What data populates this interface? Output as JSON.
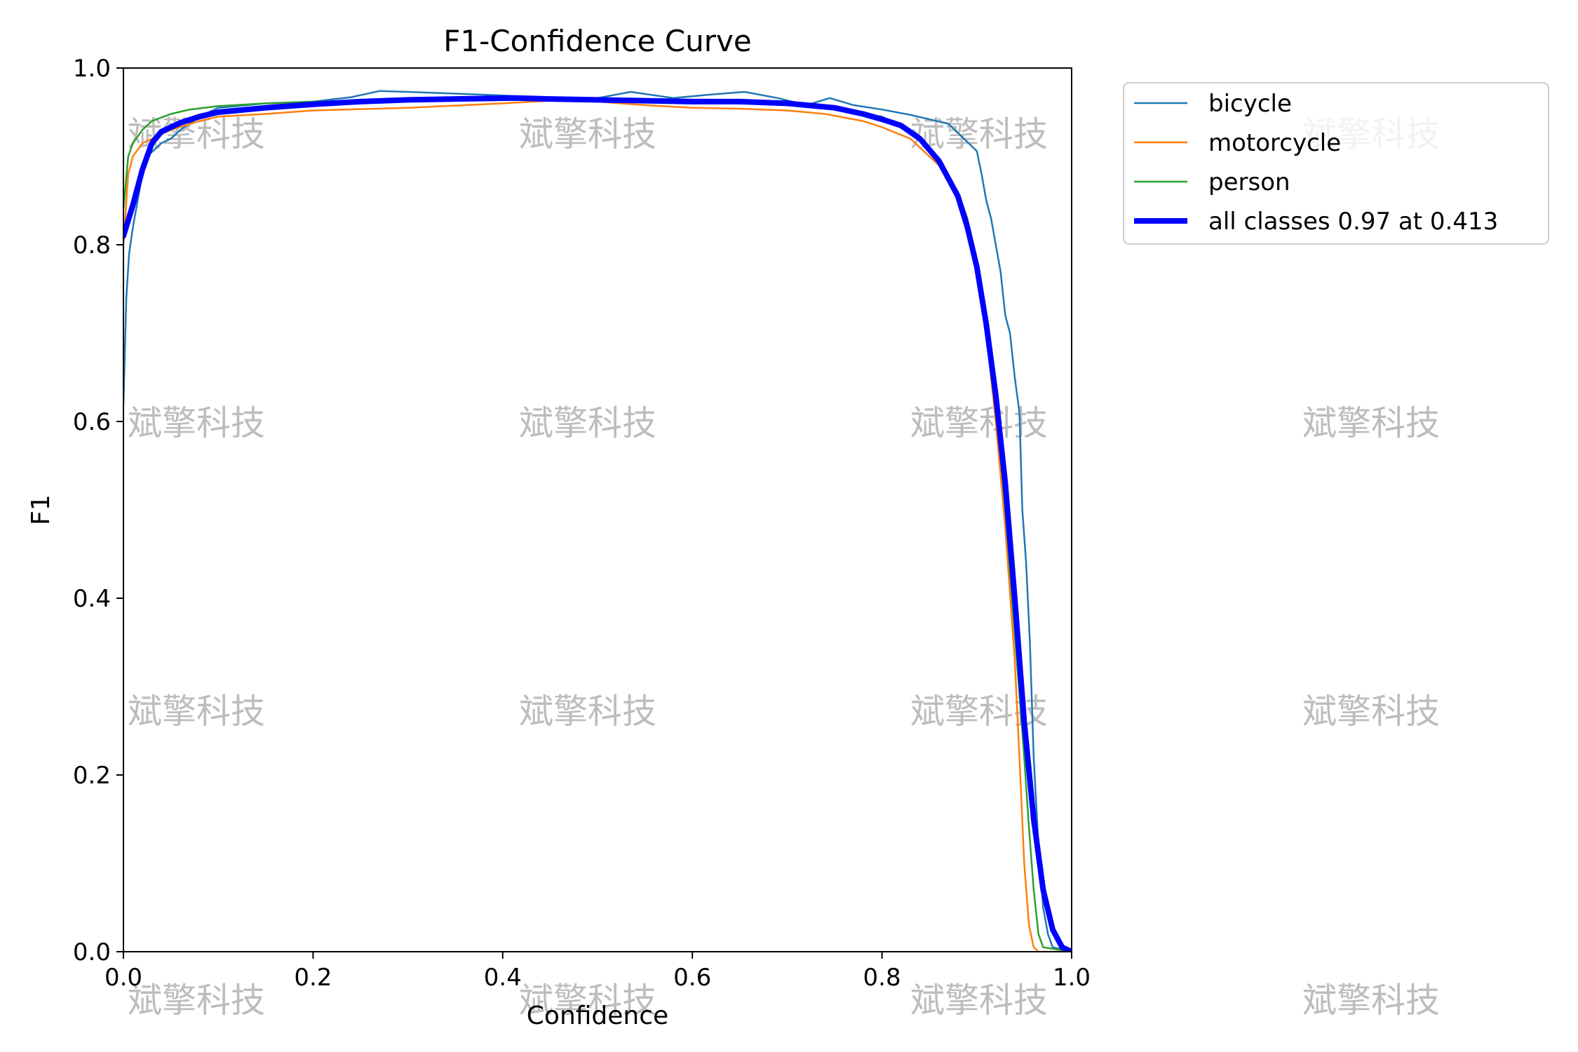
{
  "chart_data": {
    "type": "line",
    "title": "F1-Confidence Curve",
    "xlabel": "Confidence",
    "ylabel": "F1",
    "xlim": [
      0,
      1
    ],
    "ylim": [
      0,
      1
    ],
    "xticks": [
      "0.0",
      "0.2",
      "0.4",
      "0.6",
      "0.8",
      "1.0"
    ],
    "yticks": [
      "0.0",
      "0.2",
      "0.4",
      "0.6",
      "0.8",
      "1.0"
    ],
    "grid": false,
    "legend_position": "outside-upper-right",
    "series": [
      {
        "name": "bicycle",
        "color": "#1f77b4",
        "width": "thin",
        "points": [
          [
            0,
            0.62
          ],
          [
            0.003,
            0.74
          ],
          [
            0.006,
            0.79
          ],
          [
            0.01,
            0.82
          ],
          [
            0.015,
            0.85
          ],
          [
            0.02,
            0.88
          ],
          [
            0.025,
            0.9
          ],
          [
            0.03,
            0.905
          ],
          [
            0.04,
            0.915
          ],
          [
            0.05,
            0.92
          ],
          [
            0.06,
            0.93
          ],
          [
            0.08,
            0.945
          ],
          [
            0.1,
            0.955
          ],
          [
            0.15,
            0.96
          ],
          [
            0.2,
            0.962
          ],
          [
            0.24,
            0.967
          ],
          [
            0.27,
            0.974
          ],
          [
            0.3,
            0.973
          ],
          [
            0.35,
            0.971
          ],
          [
            0.4,
            0.969
          ],
          [
            0.45,
            0.966
          ],
          [
            0.5,
            0.966
          ],
          [
            0.535,
            0.973
          ],
          [
            0.58,
            0.966
          ],
          [
            0.62,
            0.97
          ],
          [
            0.655,
            0.973
          ],
          [
            0.69,
            0.966
          ],
          [
            0.72,
            0.958
          ],
          [
            0.745,
            0.966
          ],
          [
            0.77,
            0.958
          ],
          [
            0.8,
            0.953
          ],
          [
            0.83,
            0.947
          ],
          [
            0.87,
            0.937
          ],
          [
            0.9,
            0.906
          ],
          [
            0.905,
            0.88
          ],
          [
            0.91,
            0.85
          ],
          [
            0.915,
            0.83
          ],
          [
            0.92,
            0.8
          ],
          [
            0.925,
            0.77
          ],
          [
            0.93,
            0.72
          ],
          [
            0.935,
            0.7
          ],
          [
            0.94,
            0.65
          ],
          [
            0.945,
            0.61
          ],
          [
            0.948,
            0.5
          ],
          [
            0.952,
            0.44
          ],
          [
            0.956,
            0.35
          ],
          [
            0.96,
            0.22
          ],
          [
            0.965,
            0.12
          ],
          [
            0.97,
            0.05
          ],
          [
            0.975,
            0.02
          ],
          [
            0.98,
            0.005
          ],
          [
            1.0,
            0.0
          ]
        ]
      },
      {
        "name": "motorcycle",
        "color": "#ff7f0e",
        "width": "thin",
        "points": [
          [
            0,
            0.8
          ],
          [
            0.005,
            0.88
          ],
          [
            0.01,
            0.9
          ],
          [
            0.02,
            0.915
          ],
          [
            0.03,
            0.92
          ],
          [
            0.05,
            0.93
          ],
          [
            0.08,
            0.94
          ],
          [
            0.1,
            0.945
          ],
          [
            0.15,
            0.948
          ],
          [
            0.2,
            0.952
          ],
          [
            0.3,
            0.955
          ],
          [
            0.4,
            0.96
          ],
          [
            0.45,
            0.963
          ],
          [
            0.5,
            0.962
          ],
          [
            0.55,
            0.958
          ],
          [
            0.6,
            0.955
          ],
          [
            0.65,
            0.954
          ],
          [
            0.7,
            0.952
          ],
          [
            0.74,
            0.948
          ],
          [
            0.78,
            0.94
          ],
          [
            0.8,
            0.933
          ],
          [
            0.83,
            0.92
          ],
          [
            0.86,
            0.89
          ],
          [
            0.88,
            0.855
          ],
          [
            0.89,
            0.82
          ],
          [
            0.9,
            0.77
          ],
          [
            0.91,
            0.7
          ],
          [
            0.92,
            0.6
          ],
          [
            0.93,
            0.48
          ],
          [
            0.94,
            0.33
          ],
          [
            0.945,
            0.22
          ],
          [
            0.95,
            0.1
          ],
          [
            0.955,
            0.03
          ],
          [
            0.96,
            0.005
          ],
          [
            0.965,
            0.0
          ],
          [
            1.0,
            0.0
          ]
        ]
      },
      {
        "name": "person",
        "color": "#2ca02c",
        "width": "thin",
        "points": [
          [
            0,
            0.84
          ],
          [
            0.005,
            0.9
          ],
          [
            0.01,
            0.915
          ],
          [
            0.02,
            0.93
          ],
          [
            0.03,
            0.94
          ],
          [
            0.05,
            0.948
          ],
          [
            0.07,
            0.953
          ],
          [
            0.1,
            0.957
          ],
          [
            0.15,
            0.96
          ],
          [
            0.2,
            0.962
          ],
          [
            0.3,
            0.964
          ],
          [
            0.4,
            0.966
          ],
          [
            0.5,
            0.965
          ],
          [
            0.6,
            0.962
          ],
          [
            0.65,
            0.96
          ],
          [
            0.7,
            0.958
          ],
          [
            0.75,
            0.954
          ],
          [
            0.8,
            0.945
          ],
          [
            0.83,
            0.928
          ],
          [
            0.86,
            0.895
          ],
          [
            0.88,
            0.86
          ],
          [
            0.89,
            0.83
          ],
          [
            0.9,
            0.78
          ],
          [
            0.91,
            0.71
          ],
          [
            0.92,
            0.62
          ],
          [
            0.93,
            0.5
          ],
          [
            0.94,
            0.36
          ],
          [
            0.95,
            0.22
          ],
          [
            0.955,
            0.14
          ],
          [
            0.96,
            0.07
          ],
          [
            0.965,
            0.02
          ],
          [
            0.97,
            0.005
          ],
          [
            1.0,
            0.0
          ]
        ]
      },
      {
        "name": "all classes 0.97 at 0.413",
        "color": "#0000ff",
        "width": "thick",
        "points": [
          [
            0,
            0.81
          ],
          [
            0.01,
            0.845
          ],
          [
            0.02,
            0.885
          ],
          [
            0.03,
            0.915
          ],
          [
            0.04,
            0.928
          ],
          [
            0.06,
            0.938
          ],
          [
            0.08,
            0.945
          ],
          [
            0.1,
            0.95
          ],
          [
            0.15,
            0.955
          ],
          [
            0.2,
            0.959
          ],
          [
            0.25,
            0.962
          ],
          [
            0.3,
            0.964
          ],
          [
            0.35,
            0.965
          ],
          [
            0.413,
            0.966
          ],
          [
            0.45,
            0.965
          ],
          [
            0.5,
            0.964
          ],
          [
            0.55,
            0.963
          ],
          [
            0.6,
            0.962
          ],
          [
            0.65,
            0.962
          ],
          [
            0.7,
            0.96
          ],
          [
            0.75,
            0.955
          ],
          [
            0.78,
            0.948
          ],
          [
            0.8,
            0.942
          ],
          [
            0.82,
            0.935
          ],
          [
            0.84,
            0.92
          ],
          [
            0.86,
            0.895
          ],
          [
            0.88,
            0.855
          ],
          [
            0.89,
            0.82
          ],
          [
            0.9,
            0.775
          ],
          [
            0.91,
            0.71
          ],
          [
            0.92,
            0.63
          ],
          [
            0.93,
            0.53
          ],
          [
            0.94,
            0.4
          ],
          [
            0.95,
            0.26
          ],
          [
            0.96,
            0.15
          ],
          [
            0.97,
            0.07
          ],
          [
            0.98,
            0.025
          ],
          [
            0.99,
            0.005
          ],
          [
            1.0,
            0.0
          ]
        ]
      }
    ]
  },
  "watermark": {
    "text": "斌擎科技"
  }
}
